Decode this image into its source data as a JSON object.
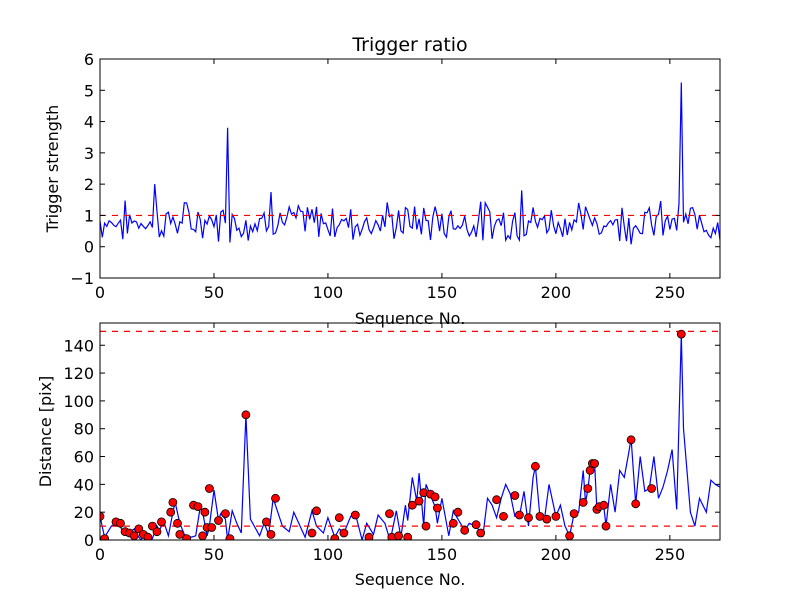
{
  "chart_data": [
    {
      "type": "line",
      "title": "Trigger ratio",
      "xlabel": "Sequence No.",
      "ylabel": "Trigger strength",
      "xlim": [
        0,
        272
      ],
      "ylim": [
        -1,
        6
      ],
      "xticks": [
        0,
        50,
        100,
        150,
        200,
        250
      ],
      "yticks": [
        -1,
        0,
        1,
        2,
        3,
        4,
        5,
        6
      ],
      "xtick_labels": [
        "0",
        "50",
        "100",
        "150",
        "200",
        "250"
      ],
      "ytick_labels": [
        "−1",
        "0",
        "1",
        "2",
        "3",
        "4",
        "5",
        "6"
      ],
      "threshold": 1,
      "series": [
        {
          "name": "trigger strength",
          "color": "#0000ff",
          "seed": 7,
          "n": 272,
          "base": 0.8,
          "noise": 0.45,
          "spikes": [
            {
              "x": 24,
              "y": 2.0
            },
            {
              "x": 56,
              "y": 3.8
            },
            {
              "x": 75,
              "y": 1.75
            },
            {
              "x": 185,
              "y": 1.8
            },
            {
              "x": 255,
              "y": 5.25
            }
          ]
        }
      ],
      "threshold_color": "#ff0000"
    },
    {
      "type": "line",
      "title": "",
      "xlabel": "Sequence No.",
      "ylabel": "Distance [pix]",
      "xlim": [
        0,
        272
      ],
      "ylim": [
        0,
        156
      ],
      "xticks": [
        0,
        50,
        100,
        150,
        200,
        250
      ],
      "yticks": [
        0,
        20,
        40,
        60,
        80,
        100,
        120,
        140
      ],
      "xtick_labels": [
        "0",
        "50",
        "100",
        "150",
        "200",
        "250"
      ],
      "ytick_labels": [
        "0",
        "20",
        "40",
        "60",
        "80",
        "100",
        "120",
        "140"
      ],
      "thresholds": [
        10,
        150
      ],
      "threshold_color": "#ff0000",
      "marker_color": "#ff0000",
      "series": [
        {
          "name": "distance",
          "color": "#0000ff",
          "x": [
            0,
            2,
            5,
            8,
            10,
            12,
            15,
            17,
            18,
            20,
            22,
            23,
            25,
            26,
            28,
            30,
            32,
            33,
            35,
            37,
            40,
            42,
            44,
            45,
            47,
            48,
            50,
            52,
            53,
            55,
            56,
            58,
            60,
            62,
            64,
            66,
            70,
            72,
            74,
            76,
            80,
            83,
            85,
            90,
            93,
            95,
            98,
            100,
            103,
            105,
            107,
            110,
            112,
            115,
            117,
            120,
            122,
            125,
            127,
            128,
            130,
            132,
            134,
            135,
            137,
            139,
            140,
            142,
            143,
            145,
            147,
            148,
            150,
            153,
            155,
            157,
            160,
            162,
            165,
            168,
            170,
            172,
            174,
            176,
            178,
            180,
            182,
            184,
            186,
            188,
            190,
            191,
            193,
            195,
            197,
            200,
            202,
            204,
            206,
            208,
            210,
            212,
            213,
            214,
            215,
            216,
            217,
            218,
            219,
            220,
            221,
            222,
            224,
            226,
            228,
            230,
            232,
            233,
            235,
            237,
            239,
            241,
            243,
            245,
            247,
            249,
            251,
            253,
            255,
            256,
            257,
            259,
            261,
            263,
            266,
            268,
            270,
            272
          ],
          "y": [
            17,
            2,
            10,
            13,
            6,
            4,
            8,
            2,
            0,
            6,
            3,
            1,
            10,
            7,
            13,
            3,
            20,
            27,
            12,
            4,
            2,
            3,
            24,
            20,
            3,
            10,
            36,
            14,
            19,
            15,
            0,
            21,
            12,
            5,
            90,
            15,
            3,
            12,
            4,
            30,
            10,
            6,
            20,
            2,
            21,
            10,
            5,
            16,
            2,
            8,
            5,
            17,
            19,
            0,
            12,
            4,
            18,
            12,
            1,
            5,
            21,
            2,
            25,
            14,
            45,
            28,
            48,
            10,
            40,
            32,
            24,
            12,
            30,
            3,
            21,
            15,
            7,
            12,
            10,
            3,
            30,
            25,
            16,
            30,
            40,
            33,
            17,
            17,
            35,
            10,
            45,
            53,
            17,
            15,
            40,
            17,
            25,
            10,
            3,
            19,
            20,
            50,
            27,
            36,
            50,
            56,
            55,
            22,
            20,
            25,
            24,
            10,
            40,
            20,
            50,
            45,
            63,
            73,
            26,
            60,
            35,
            37,
            60,
            30,
            38,
            50,
            65,
            22,
            148,
            80,
            60,
            20,
            10,
            30,
            20,
            43,
            40,
            38
          ],
          "marker_x": [
            0,
            2,
            7,
            9,
            11,
            13,
            15,
            17,
            19,
            21,
            23,
            25,
            27,
            31,
            32,
            34,
            35,
            38,
            41,
            43,
            45,
            46,
            47,
            48,
            49,
            52,
            55,
            57,
            64,
            73,
            75,
            77,
            93,
            95,
            103,
            105,
            107,
            112,
            118,
            127,
            128,
            131,
            135,
            137,
            140,
            142,
            143,
            145,
            147,
            148,
            155,
            157,
            160,
            165,
            167,
            174,
            177,
            182,
            184,
            188,
            191,
            193,
            196,
            200,
            206,
            208,
            212,
            214,
            215,
            216,
            217,
            218,
            219,
            221,
            222,
            233,
            235,
            242,
            255
          ],
          "marker_y": [
            17,
            1,
            13,
            12,
            6,
            5,
            3,
            8,
            4,
            2,
            10,
            6,
            13,
            20,
            27,
            12,
            4,
            1,
            25,
            24,
            3,
            20,
            9,
            37,
            9,
            14,
            19,
            1,
            90,
            13,
            4,
            30,
            5,
            21,
            1,
            16,
            5,
            18,
            2,
            19,
            2,
            3,
            2,
            25,
            28,
            34,
            10,
            33,
            31,
            23,
            12,
            20,
            7,
            11,
            5,
            29,
            17,
            32,
            18,
            16,
            53,
            17,
            15,
            17,
            3,
            19,
            27,
            37,
            50,
            55,
            55,
            22,
            24,
            25,
            10,
            72,
            26,
            37,
            148
          ]
        }
      ]
    }
  ]
}
